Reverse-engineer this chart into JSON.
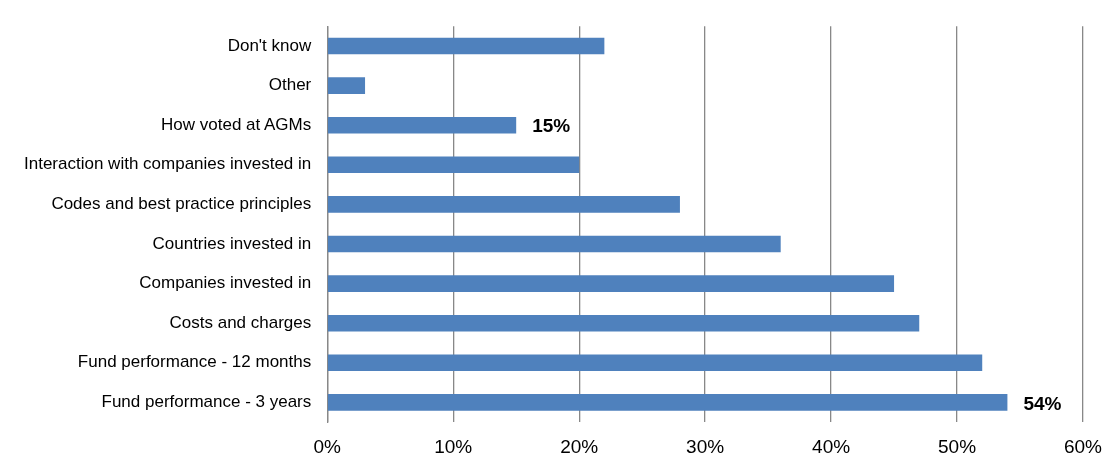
{
  "chart_data": {
    "type": "bar",
    "orientation": "horizontal",
    "categories": [
      "Don't know",
      "Other",
      "How voted at AGMs",
      "Interaction with companies invested in",
      "Codes and best practice principles",
      "Countries invested in",
      "Companies invested in",
      "Costs and charges",
      "Fund performance - 12 months",
      "Fund performance - 3 years"
    ],
    "values": [
      22,
      3,
      15,
      20,
      28,
      36,
      45,
      47,
      52,
      54
    ],
    "value_labels": [
      null,
      null,
      "15%",
      null,
      null,
      null,
      null,
      null,
      null,
      "54%"
    ],
    "color": "#4f81bd",
    "xlim": [
      0,
      60
    ],
    "xticks": [
      {
        "value": 0,
        "label": "0%"
      },
      {
        "value": 10,
        "label": "10%"
      },
      {
        "value": 20,
        "label": "20%"
      },
      {
        "value": 30,
        "label": "30%"
      },
      {
        "value": 40,
        "label": "40%"
      },
      {
        "value": 50,
        "label": "50%"
      },
      {
        "value": 60,
        "label": "60%"
      }
    ],
    "grid": "x",
    "legend": false
  }
}
